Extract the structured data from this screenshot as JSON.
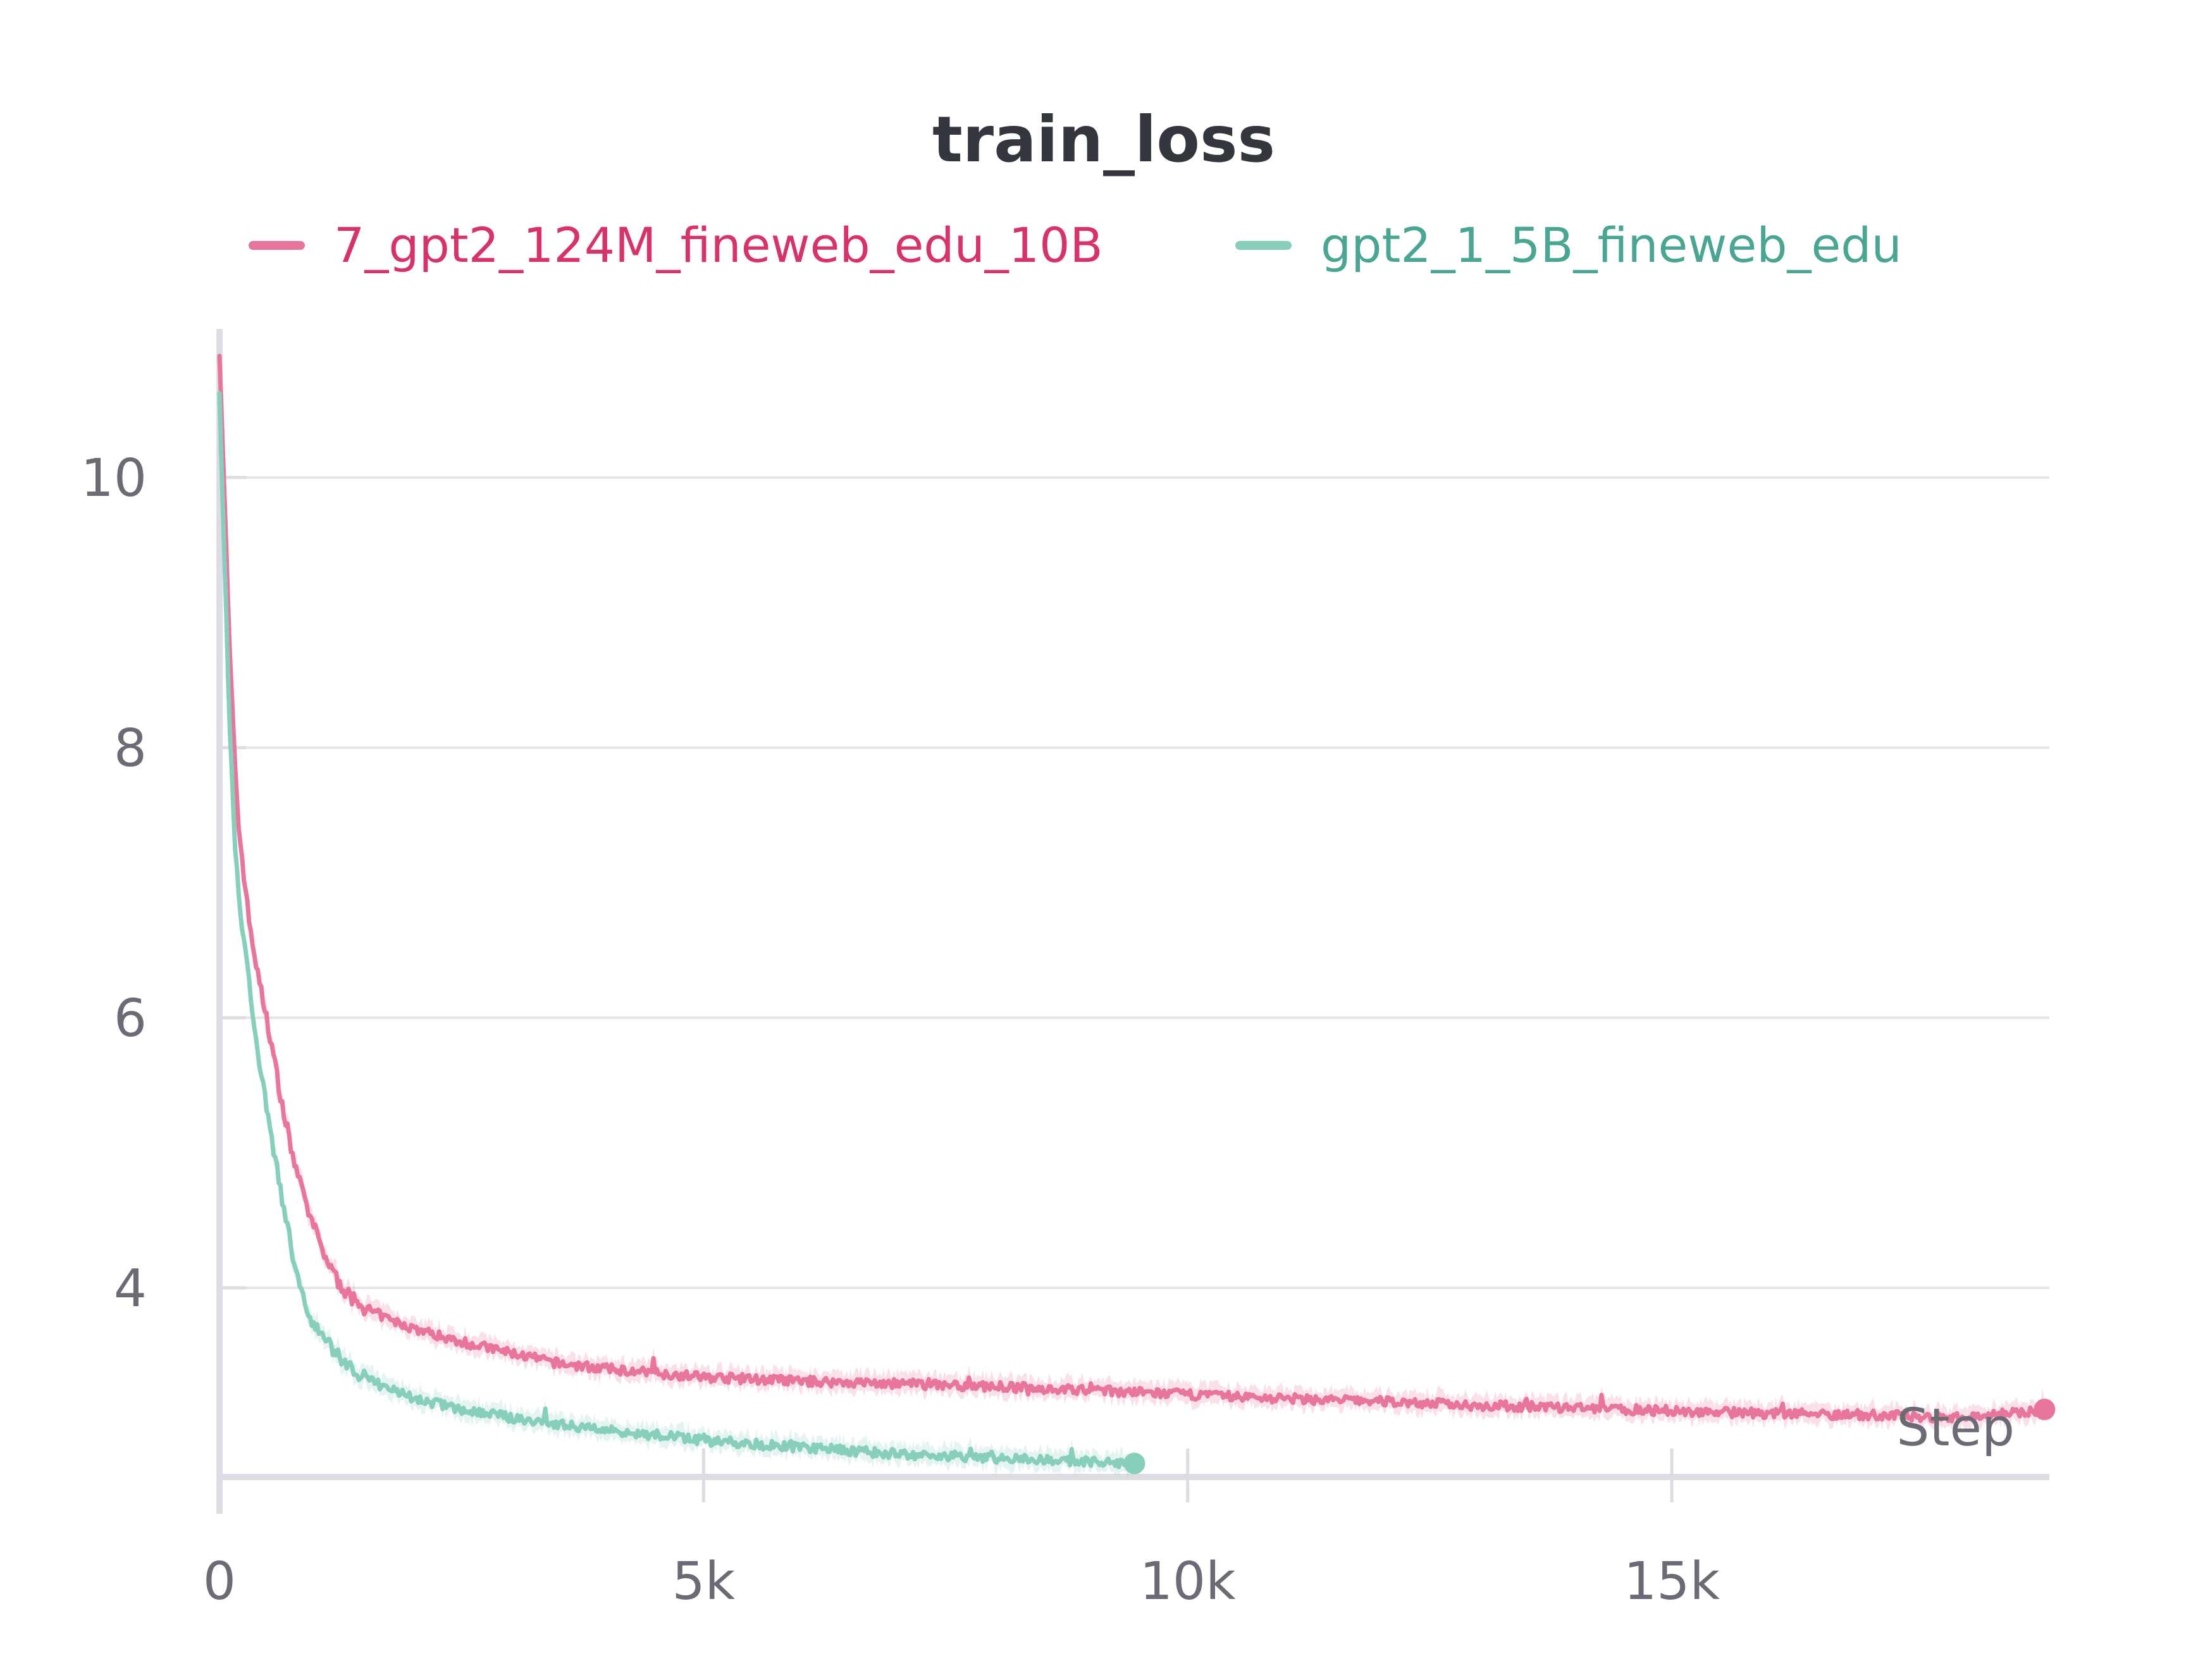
{
  "chart_data": {
    "type": "line",
    "title": "train_loss",
    "xlabel": "Step",
    "ylabel": "",
    "xlim": [
      0,
      18900
    ],
    "ylim": [
      2.6,
      11.1
    ],
    "xticks": [
      {
        "value": 0,
        "label": "0"
      },
      {
        "value": 5000,
        "label": "5k"
      },
      {
        "value": 10000,
        "label": "10k"
      },
      {
        "value": 15000,
        "label": "15k"
      }
    ],
    "yticks": [
      {
        "value": 4,
        "label": "4"
      },
      {
        "value": 6,
        "label": "6"
      },
      {
        "value": 8,
        "label": "8"
      },
      {
        "value": 10,
        "label": "10"
      }
    ],
    "grid": "horizontal",
    "legend_position": "top",
    "series": [
      {
        "name": "7_gpt2_124M_fineweb_edu_10B",
        "color": "#e8769c",
        "text_color": "#d6336c",
        "points": [
          [
            0,
            10.95
          ],
          [
            50,
            9.9
          ],
          [
            100,
            8.8
          ],
          [
            150,
            8.0
          ],
          [
            200,
            7.4
          ],
          [
            300,
            6.75
          ],
          [
            400,
            6.3
          ],
          [
            500,
            5.95
          ],
          [
            600,
            5.55
          ],
          [
            700,
            5.15
          ],
          [
            800,
            4.85
          ],
          [
            900,
            4.6
          ],
          [
            1000,
            4.4
          ],
          [
            1100,
            4.22
          ],
          [
            1200,
            4.08
          ],
          [
            1300,
            3.96
          ],
          [
            1500,
            3.85
          ],
          [
            1800,
            3.75
          ],
          [
            2100,
            3.68
          ],
          [
            2500,
            3.6
          ],
          [
            3000,
            3.52
          ],
          [
            3500,
            3.44
          ],
          [
            4000,
            3.4
          ],
          [
            4500,
            3.37
          ],
          [
            5000,
            3.34
          ],
          [
            6000,
            3.31
          ],
          [
            7000,
            3.29
          ],
          [
            8000,
            3.27
          ],
          [
            9000,
            3.24
          ],
          [
            10000,
            3.21
          ],
          [
            11000,
            3.18
          ],
          [
            12000,
            3.16
          ],
          [
            13000,
            3.13
          ],
          [
            14000,
            3.11
          ],
          [
            15000,
            3.09
          ],
          [
            16000,
            3.07
          ],
          [
            17000,
            3.06
          ],
          [
            18000,
            3.04
          ],
          [
            18850,
            3.1
          ]
        ]
      },
      {
        "name": "gpt2_1_5B_fineweb_edu",
        "color": "#87cebc",
        "text_color": "#4aa592",
        "points": [
          [
            0,
            10.6
          ],
          [
            50,
            9.4
          ],
          [
            100,
            8.3
          ],
          [
            150,
            7.4
          ],
          [
            200,
            6.85
          ],
          [
            300,
            6.3
          ],
          [
            400,
            5.75
          ],
          [
            500,
            5.25
          ],
          [
            600,
            4.85
          ],
          [
            700,
            4.45
          ],
          [
            800,
            4.1
          ],
          [
            900,
            3.85
          ],
          [
            1000,
            3.7
          ],
          [
            1200,
            3.52
          ],
          [
            1400,
            3.38
          ],
          [
            1600,
            3.3
          ],
          [
            2000,
            3.18
          ],
          [
            2500,
            3.1
          ],
          [
            3000,
            3.04
          ],
          [
            3500,
            2.99
          ],
          [
            4000,
            2.95
          ],
          [
            5000,
            2.87
          ],
          [
            6000,
            2.82
          ],
          [
            7000,
            2.77
          ],
          [
            8000,
            2.74
          ],
          [
            9000,
            2.71
          ],
          [
            9450,
            2.7
          ]
        ]
      }
    ]
  }
}
